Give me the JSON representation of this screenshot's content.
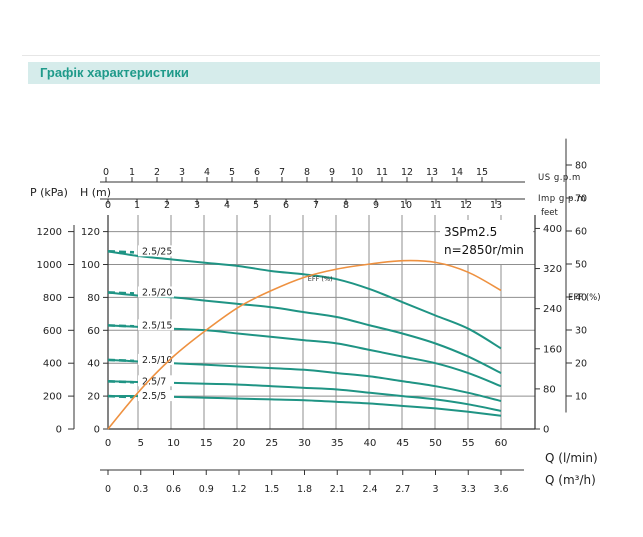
{
  "header": {
    "title": "Графік характеристики"
  },
  "colors": {
    "pump": "#1f9484",
    "eff": "#ee9140",
    "grid": "#8f8f8f",
    "axis": "#333333",
    "banner_bg": "#d6eceb",
    "banner_text": "#1f9a8a"
  },
  "chart_data": {
    "type": "line",
    "model": "3SPm2.5",
    "speed": "n=2850r/min",
    "x": [
      0,
      5,
      10,
      15,
      20,
      25,
      30,
      35,
      40,
      45,
      50,
      55,
      60
    ],
    "xlim": [
      0,
      60
    ],
    "ylim": [
      0,
      130
    ],
    "grid": true,
    "axes": {
      "p_kpa": {
        "label": "P (kPa)",
        "ticks": [
          "1200",
          "1000",
          "800",
          "600",
          "400",
          "200",
          "0"
        ]
      },
      "h_m": {
        "label": "H (m)",
        "ticks": [
          "120",
          "100",
          "80",
          "60",
          "40",
          "20",
          "0"
        ]
      },
      "feet": {
        "label": "feet",
        "ticks": [
          "400",
          "320",
          "240",
          "160",
          "80",
          "0"
        ]
      },
      "eff": {
        "label": "EFF (%)",
        "ticks": [
          "80",
          "70",
          "60",
          "50",
          "40",
          "30",
          "20",
          "10"
        ]
      },
      "us_gpm": {
        "label": "US g.p.m",
        "ticks": [
          "0",
          "1",
          "2",
          "3",
          "4",
          "5",
          "6",
          "7",
          "8",
          "9",
          "10",
          "11",
          "12",
          "13",
          "14",
          "15"
        ]
      },
      "imp_gpm": {
        "label": "Imp g.p.m",
        "ticks": [
          "0",
          "1",
          "2",
          "3",
          "4",
          "5",
          "6",
          "7",
          "8",
          "9",
          "10",
          "11",
          "12",
          "13"
        ]
      },
      "q_lmin": {
        "label": "Q (l/min)",
        "ticks": [
          "0",
          "5",
          "10",
          "15",
          "20",
          "25",
          "30",
          "35",
          "40",
          "45",
          "50",
          "55",
          "60"
        ]
      },
      "q_m3h": {
        "label": "Q (m³/h)",
        "ticks": [
          "0",
          "0.3",
          "0.6",
          "0.9",
          "1.2",
          "1.5",
          "1.8",
          "2.1",
          "2.4",
          "2.7",
          "3",
          "3.3",
          "3.6"
        ]
      }
    },
    "series": [
      {
        "name": "2.5/25",
        "values": [
          108,
          105,
          103,
          101,
          99,
          96,
          94,
          91,
          85,
          77,
          69,
          61,
          49
        ]
      },
      {
        "name": "2.5/20",
        "values": [
          83,
          81,
          80,
          78,
          76,
          74,
          71,
          68,
          63,
          58,
          52,
          44,
          34
        ]
      },
      {
        "name": "2.5/15",
        "values": [
          63,
          62,
          61,
          60,
          58,
          56,
          54,
          52,
          48,
          44,
          40,
          34,
          26
        ]
      },
      {
        "name": "2.5/10",
        "values": [
          42,
          41,
          40,
          39,
          38,
          37,
          36,
          34,
          32,
          29,
          26,
          22,
          17
        ]
      },
      {
        "name": "2.5/7",
        "values": [
          29,
          28.5,
          28,
          27.5,
          27,
          26,
          25,
          24,
          22,
          20,
          18,
          15,
          11
        ]
      },
      {
        "name": "2.5/5",
        "values": [
          20,
          20,
          19.5,
          19,
          18.5,
          18,
          17.5,
          16.5,
          15.5,
          14,
          12.5,
          10.5,
          8
        ]
      },
      {
        "name": "EFF (%)",
        "axis": "eff",
        "values": [
          0,
          12,
          22,
          30,
          37,
          42,
          46,
          48.5,
          50,
          51,
          50.5,
          47.5,
          42
        ]
      }
    ]
  }
}
